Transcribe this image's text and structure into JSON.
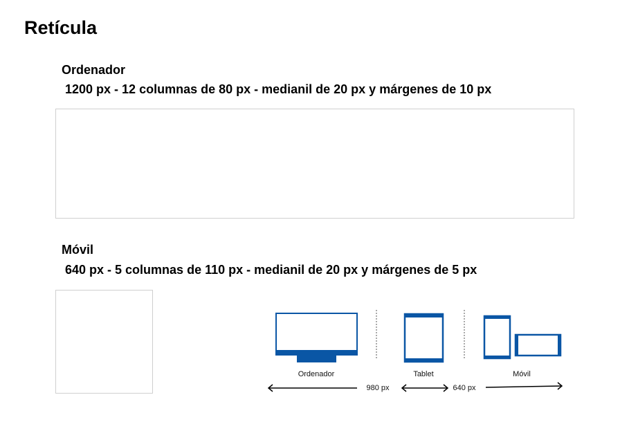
{
  "page": {
    "title": "Retícula"
  },
  "desktop": {
    "heading": "Ordenador",
    "spec": "1200 px - 12 columnas de 80 px - medianil de 20 px y márgenes de 10 px"
  },
  "mobile": {
    "heading": "Móvil",
    "spec": "640 px - 5 columnas de 110 px - medianil de 20 px y márgenes de 5 px"
  },
  "breakpoints": {
    "devices": [
      {
        "name": "monitor-icon",
        "label": "Ordenador"
      },
      {
        "name": "tablet-icon",
        "label": "Tablet"
      },
      {
        "name": "phone-icon",
        "label": "Móvil"
      }
    ],
    "widths": [
      "980 px",
      "640 px"
    ]
  },
  "colors": {
    "accent": "#0a56a5",
    "box_border": "#cfcfcf",
    "divider": "#555555"
  }
}
